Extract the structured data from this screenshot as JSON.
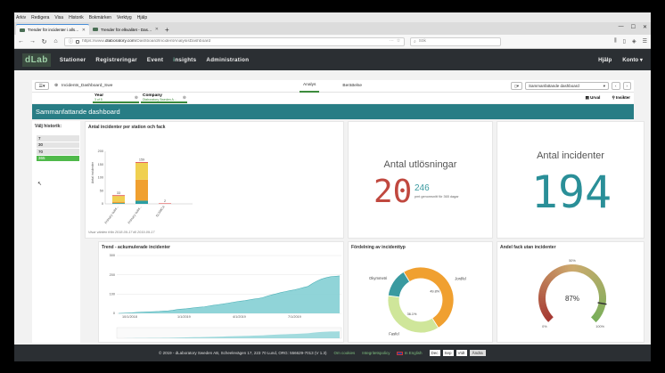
{
  "browser": {
    "menu": [
      "Arkiv",
      "Redigera",
      "Visa",
      "Historik",
      "Bokmärken",
      "Verktyg",
      "Hjälp"
    ],
    "tabs": [
      {
        "label": "Trender för incidenter i allsidor"
      },
      {
        "label": "Trender för elkvalitet - Dashboa..."
      }
    ],
    "url_prefix": "https://www.",
    "url_domain": "dlaboratory.com",
    "url_path": "/Dashboard/IncidentAnalysisDashboard",
    "url_more": "···",
    "search_placeholder": "Sök"
  },
  "app": {
    "logo": "dLab",
    "nav": [
      "Stationer",
      "Registreringar",
      "Event",
      "Insights",
      "Administration"
    ],
    "insights_prefix": "i",
    "insights_rest": "nsights",
    "right": [
      "Hjälp",
      "Konto"
    ]
  },
  "toolbar": {
    "app_name": "Incidents_Dashboard_Swe",
    "tabs": [
      "Analys",
      "Berättelse"
    ],
    "sheet_select": "Sammanfattande dashboard"
  },
  "selections": {
    "chips": [
      {
        "name": "Year",
        "value": "3 of 5"
      },
      {
        "name": "Company",
        "value": "Dlaboratory Sweden A..."
      }
    ],
    "urval": "Urval",
    "insikter": "Insikter"
  },
  "title": "Sammanfattande dashboard",
  "history": {
    "title": "Välj historik:",
    "items": [
      "7",
      "30",
      "70",
      "365"
    ],
    "selected": "365"
  },
  "bar_panel": {
    "title": "Antal incidenter per station och fack",
    "footnote": "Visar värden från 2018-09-17 till 2019-09-17",
    "ylabel": "Antal incidenter",
    "chart_data": {
      "type": "bar",
      "stacked": true,
      "categories": [
        "Primary subs...",
        "Primary subs...",
        "SLSMCA"
      ],
      "totals": [
        33,
        159,
        2
      ],
      "ylim": [
        0,
        200
      ],
      "yticks": [
        0,
        50,
        100,
        150,
        200
      ],
      "series": [
        {
          "color": "#2a9ea3",
          "values": [
            3,
            12,
            0
          ]
        },
        {
          "color": "#f0a030",
          "values": [
            5,
            80,
            0
          ]
        },
        {
          "color": "#f0d050",
          "values": [
            22,
            64,
            0
          ]
        },
        {
          "color": "#e05050",
          "values": [
            3,
            3,
            2
          ]
        }
      ]
    }
  },
  "kpi1": {
    "title": "Antal utlösningar",
    "value": "20",
    "avg": "246",
    "avg_label": "pmt genomsnitt för 365 dagar",
    "value_color": "#c0483f",
    "avg_color": "#3a9aa0"
  },
  "kpi2": {
    "title": "Antal incidenter",
    "value": "194",
    "color": "#2a8f98"
  },
  "trend": {
    "title": "Trend - ackumulerade incidenter",
    "chart_data": {
      "type": "area",
      "ylim": [
        0,
        300
      ],
      "yticks": [
        "0",
        "100",
        "200",
        "300"
      ],
      "xticks": [
        "10/1/2018",
        "1/1/2019",
        "4/1/2019",
        "7/1/2019"
      ],
      "values": [
        0,
        1,
        2,
        3,
        5,
        6,
        7,
        8,
        9,
        10,
        12,
        13,
        16,
        20,
        22,
        24,
        27,
        30,
        32,
        34,
        38,
        42,
        45,
        48,
        52,
        56,
        60,
        63,
        66,
        70,
        74,
        77,
        82,
        90,
        96,
        102,
        108,
        113,
        118,
        122,
        128,
        134,
        140,
        155,
        168,
        178,
        185,
        190,
        192,
        194
      ],
      "color": "#7ccdd1"
    }
  },
  "donut": {
    "title": "Fördelning av incidenttyp",
    "chart_data": {
      "type": "pie",
      "slices": [
        {
          "label": "Jordfel",
          "value": 49.8,
          "display": "49.8%",
          "color": "#f0a030"
        },
        {
          "label": "Fasfel",
          "value": 36.1,
          "display": "36.1%",
          "color": "#cfe69a"
        },
        {
          "label": "Okymmetri",
          "value": 14.1,
          "display": "",
          "color": "#3a9aa0"
        }
      ]
    }
  },
  "gauge": {
    "title": "Andel fack utan incidenter",
    "value": 0.87,
    "display": "87%",
    "min_label": "0%",
    "mid_label": "50%",
    "max_label": "100%"
  },
  "footer": {
    "copyright": "© 2019 - dLaboratory Sweden AB, Scheelevägen 17, 223 70 Lund, ORG: 556629-7013 (V 1.3)",
    "link1": "Om cookies",
    "link2": "Integritetspolicy",
    "lang": "In English",
    "date": [
      "Dec",
      "Sep",
      "Vtdt"
    ],
    "apply": "Ändra"
  }
}
